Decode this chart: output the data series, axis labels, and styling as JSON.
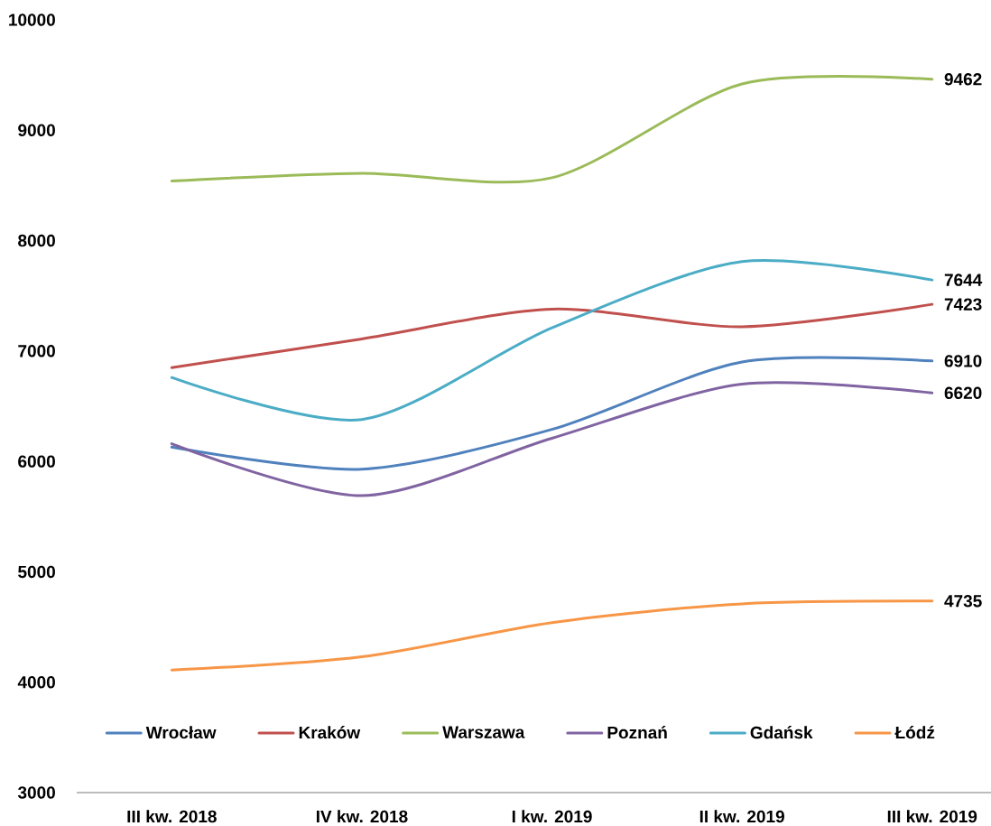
{
  "chart_data": {
    "type": "line",
    "categories": [
      "III kw. 2018",
      "IV kw. 2018",
      "I kw. 2019",
      "II kw. 2019",
      "III kw. 2019"
    ],
    "series": [
      {
        "name": "Wrocław",
        "color": "#4f81bd",
        "values": [
          6130,
          5930,
          6290,
          6900,
          6910
        ],
        "value_labels": [
          null,
          null,
          null,
          null,
          "6910"
        ]
      },
      {
        "name": "Kraków",
        "color": "#c0504d",
        "values": [
          6850,
          7110,
          7380,
          7220,
          7423
        ],
        "value_labels": [
          null,
          null,
          null,
          null,
          "7423"
        ]
      },
      {
        "name": "Warszawa",
        "color": "#9bbb59",
        "values": [
          8540,
          8610,
          8570,
          9420,
          9462
        ],
        "value_labels": [
          null,
          null,
          null,
          null,
          "9462"
        ]
      },
      {
        "name": "Poznań",
        "color": "#8064a2",
        "values": [
          6160,
          5690,
          6210,
          6700,
          6620
        ],
        "value_labels": [
          null,
          null,
          null,
          null,
          "6620"
        ]
      },
      {
        "name": "Gdańsk",
        "color": "#4bacc6",
        "values": [
          6760,
          6380,
          7210,
          7810,
          7644
        ],
        "value_labels": [
          null,
          null,
          null,
          null,
          "7644"
        ]
      },
      {
        "name": "Łódź",
        "color": "#f79646",
        "values": [
          4110,
          4230,
          4540,
          4710,
          4735
        ],
        "value_labels": [
          null,
          null,
          null,
          null,
          "4735"
        ]
      }
    ],
    "ylim": [
      3000,
      10000
    ],
    "yticks": [
      3000,
      4000,
      5000,
      6000,
      7000,
      8000,
      9000,
      10000
    ],
    "legend": "bottom",
    "line_style": "solid"
  }
}
